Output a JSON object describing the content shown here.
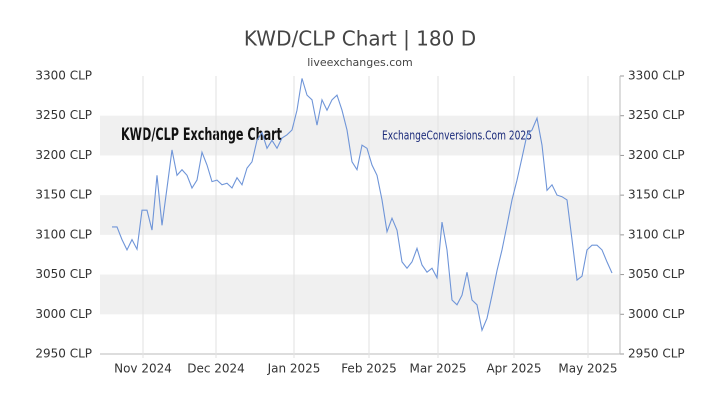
{
  "chart_data": {
    "type": "line",
    "title": "KWD/CLP Chart | 180 D",
    "subtitle": "liveexchanges.com",
    "annotations": [
      "KWD/CLP Exchange Chart",
      "ExchangeConversions.Com 2025"
    ],
    "series": [
      {
        "name": "KWD/CLP",
        "color": "#6f95d8",
        "values": [
          3110,
          3110,
          3094,
          3081,
          3094,
          3082,
          3131,
          3131,
          3106,
          3175,
          3112,
          3159,
          3207,
          3175,
          3182,
          3175,
          3159,
          3169,
          3204,
          3188,
          3167,
          3169,
          3163,
          3165,
          3159,
          3172,
          3163,
          3184,
          3192,
          3219,
          3229,
          3209,
          3219,
          3209,
          3222,
          3226,
          3232,
          3257,
          3297,
          3276,
          3270,
          3238,
          3270,
          3257,
          3270,
          3276,
          3257,
          3232,
          3192,
          3182,
          3213,
          3209,
          3188,
          3175,
          3144,
          3104,
          3121,
          3106,
          3066,
          3058,
          3066,
          3083,
          3062,
          3053,
          3058,
          3046,
          3116,
          3081,
          3018,
          3012,
          3024,
          3053,
          3018,
          3012,
          2980,
          2995,
          3024,
          3055,
          3081,
          3112,
          3144,
          3169,
          3197,
          3226,
          3232,
          3247,
          3213,
          3156,
          3163,
          3150,
          3148,
          3144,
          3094,
          3043,
          3048,
          3081,
          3087,
          3087,
          3081,
          3066,
          3052
        ]
      }
    ],
    "xlim": [
      -2.4,
      101.6
    ],
    "xticks": [
      {
        "value": 6.2,
        "label": "Nov 2024"
      },
      {
        "value": 20.8,
        "label": "Dec 2024"
      },
      {
        "value": 36.4,
        "label": "Jan 2025"
      },
      {
        "value": 51.4,
        "label": "Feb 2025"
      },
      {
        "value": 65.2,
        "label": "Mar 2025"
      },
      {
        "value": 80.4,
        "label": "Apr 2025"
      },
      {
        "value": 95.2,
        "label": "May 2025"
      }
    ],
    "ylim": [
      2950,
      3300
    ],
    "yticks": [
      {
        "value": 2950,
        "label": "2950 CLP"
      },
      {
        "value": 3000,
        "label": "3000 CLP"
      },
      {
        "value": 3050,
        "label": "3050 CLP"
      },
      {
        "value": 3100,
        "label": "3100 CLP"
      },
      {
        "value": 3150,
        "label": "3150 CLP"
      },
      {
        "value": 3200,
        "label": "3200 CLP"
      },
      {
        "value": 3250,
        "label": "3250 CLP"
      },
      {
        "value": 3300,
        "label": "3300 CLP"
      }
    ],
    "y2lim": [
      2950,
      3300
    ],
    "y2ticks": [
      {
        "value": 2950,
        "label": "2950 CLP"
      },
      {
        "value": 3000,
        "label": "3000 CLP"
      },
      {
        "value": 3050,
        "label": "3050 CLP"
      },
      {
        "value": 3100,
        "label": "3100 CLP"
      },
      {
        "value": 3150,
        "label": "3150 CLP"
      },
      {
        "value": 3200,
        "label": "3200 CLP"
      },
      {
        "value": 3250,
        "label": "3250 CLP"
      },
      {
        "value": 3300,
        "label": "3300 CLP"
      }
    ],
    "band_color": "#f0f0f0"
  }
}
